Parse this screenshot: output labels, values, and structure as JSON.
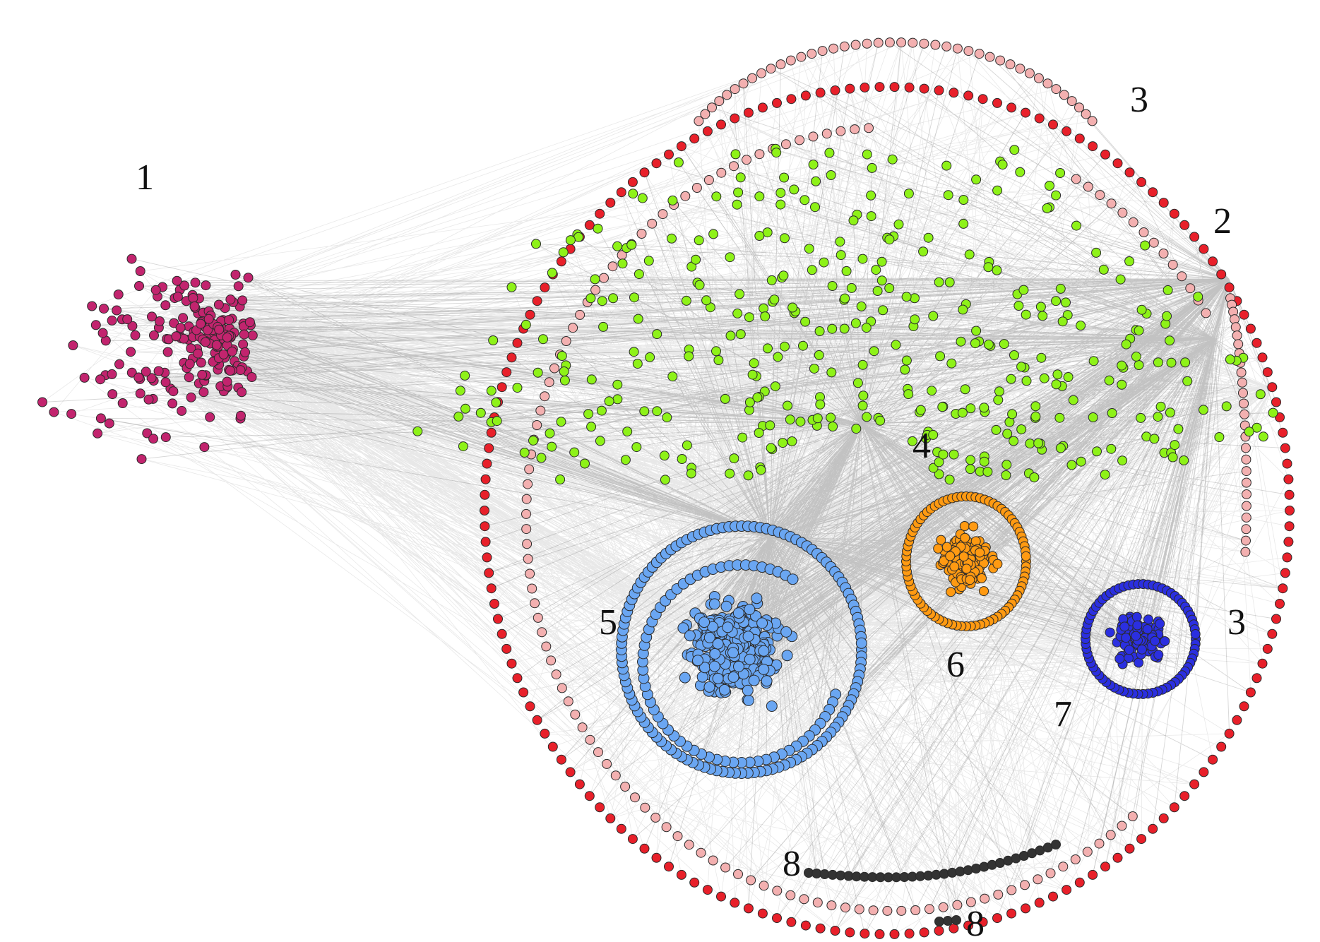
{
  "diagram": {
    "type": "network-graph",
    "edge_color": "#000000",
    "node_outline_color": "#2a2a2a",
    "clusters": [
      {
        "id": "1",
        "label": "1",
        "color": "#c2246e",
        "shape": "scattered-cloud"
      },
      {
        "id": "2",
        "label": "2",
        "color": "#e8202a",
        "shape": "outer-ring"
      },
      {
        "id": "3",
        "label": "3",
        "color": "#f3b0b0",
        "shape": "inner-ring-and-top-arc",
        "extra_label": "3"
      },
      {
        "id": "4",
        "label": "4",
        "color": "#8ef218",
        "shape": "scattered-fan"
      },
      {
        "id": "5",
        "label": "5",
        "color": "#6aa6f2",
        "shape": "ring-with-dense-core"
      },
      {
        "id": "6",
        "label": "6",
        "color": "#ff9a12",
        "shape": "ring-with-core"
      },
      {
        "id": "7",
        "label": "7",
        "color": "#2b2fe0",
        "shape": "ring-with-core"
      },
      {
        "id": "8",
        "label": "8",
        "color": "#333333",
        "shape": "arc-chain",
        "extra_label": "8"
      }
    ]
  }
}
